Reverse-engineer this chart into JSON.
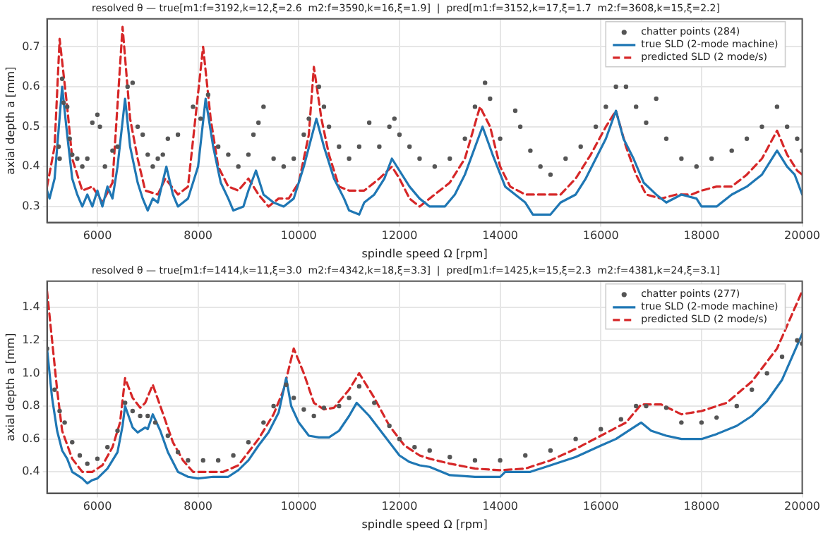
{
  "chart_data": [
    {
      "type": "line",
      "title": "resolved θ — true[m1:f=3192,k=12,ξ=2.6  m2:f=3590,k=16,ξ=1.9]  |  pred[m1:f=3152,k=17,ξ=1.7  m2:f=3608,k=15,ξ=2.2]",
      "xlabel": "spindle speed Ω [rpm]",
      "ylabel": "axial depth a [mm]",
      "xlim": [
        5000,
        20000
      ],
      "xticks": [
        6000,
        8000,
        10000,
        12000,
        14000,
        16000,
        18000,
        20000
      ],
      "ylim": [
        0.26,
        0.77
      ],
      "yticks": [
        0.3,
        0.4,
        0.5,
        0.6,
        0.7
      ],
      "grid": true,
      "legend": "top right",
      "series": [
        {
          "name": "chatter points (284)",
          "type": "scatter",
          "marker": "circle",
          "color": "#555555",
          "x": [
            5230,
            5250,
            5300,
            5330,
            5400,
            5450,
            5500,
            5600,
            5700,
            5800,
            5900,
            6000,
            6050,
            6150,
            6300,
            6400,
            6600,
            6700,
            6800,
            6900,
            7000,
            7100,
            7200,
            7300,
            7400,
            7600,
            7900,
            8050,
            8200,
            8400,
            8600,
            8800,
            9000,
            9100,
            9200,
            9300,
            9500,
            9700,
            9900,
            10100,
            10200,
            10400,
            10500,
            10600,
            10800,
            11000,
            11200,
            11400,
            11600,
            11800,
            11900,
            12000,
            12200,
            12400,
            12700,
            13000,
            13300,
            13500,
            13700,
            13800,
            14000,
            14300,
            14400,
            14600,
            14800,
            15000,
            15300,
            15600,
            15900,
            16100,
            16300,
            16500,
            16700,
            16900,
            17100,
            17300,
            17600,
            17900,
            18200,
            18600,
            18900,
            19200,
            19500,
            19700,
            19900,
            20000
          ],
          "values": [
            0.45,
            0.42,
            0.62,
            0.56,
            0.55,
            0.47,
            0.43,
            0.42,
            0.4,
            0.42,
            0.51,
            0.53,
            0.5,
            0.4,
            0.44,
            0.45,
            0.6,
            0.61,
            0.5,
            0.48,
            0.43,
            0.4,
            0.42,
            0.43,
            0.47,
            0.48,
            0.55,
            0.52,
            0.58,
            0.45,
            0.43,
            0.4,
            0.43,
            0.48,
            0.51,
            0.55,
            0.42,
            0.4,
            0.42,
            0.48,
            0.52,
            0.6,
            0.55,
            0.5,
            0.45,
            0.42,
            0.45,
            0.51,
            0.45,
            0.5,
            0.52,
            0.48,
            0.45,
            0.42,
            0.4,
            0.42,
            0.47,
            0.55,
            0.61,
            0.57,
            0.47,
            0.54,
            0.5,
            0.44,
            0.4,
            0.38,
            0.42,
            0.45,
            0.5,
            0.55,
            0.6,
            0.6,
            0.55,
            0.51,
            0.57,
            0.47,
            0.42,
            0.4,
            0.42,
            0.44,
            0.47,
            0.5,
            0.55,
            0.5,
            0.47,
            0.44
          ]
        },
        {
          "name": "true SLD (2-mode machine)",
          "type": "line",
          "line_style": "solid",
          "color": "#1f77b4",
          "x": [
            5000,
            5050,
            5150,
            5300,
            5400,
            5500,
            5600,
            5700,
            5800,
            5900,
            6000,
            6100,
            6200,
            6300,
            6400,
            6550,
            6650,
            6800,
            6900,
            7000,
            7100,
            7200,
            7370,
            7500,
            7600,
            7800,
            8000,
            8150,
            8300,
            8450,
            8600,
            8700,
            8900,
            9000,
            9150,
            9300,
            9500,
            9700,
            9900,
            10100,
            10350,
            10500,
            10700,
            10900,
            11000,
            11200,
            11300,
            11500,
            11700,
            11850,
            12000,
            12200,
            12400,
            12600,
            12900,
            13100,
            13300,
            13650,
            13850,
            14100,
            14300,
            14500,
            14650,
            15000,
            15200,
            15500,
            15700,
            15900,
            16100,
            16300,
            16450,
            16650,
            16850,
            17100,
            17300,
            17600,
            17900,
            18000,
            18300,
            18600,
            18900,
            19200,
            19500,
            19700,
            19850,
            20000
          ],
          "values": [
            0.34,
            0.32,
            0.37,
            0.6,
            0.48,
            0.37,
            0.33,
            0.3,
            0.33,
            0.3,
            0.34,
            0.3,
            0.35,
            0.32,
            0.4,
            0.57,
            0.45,
            0.36,
            0.32,
            0.29,
            0.32,
            0.31,
            0.4,
            0.33,
            0.3,
            0.32,
            0.4,
            0.57,
            0.45,
            0.36,
            0.32,
            0.29,
            0.3,
            0.34,
            0.39,
            0.33,
            0.31,
            0.3,
            0.32,
            0.4,
            0.52,
            0.45,
            0.37,
            0.32,
            0.29,
            0.28,
            0.31,
            0.33,
            0.37,
            0.42,
            0.39,
            0.35,
            0.32,
            0.3,
            0.3,
            0.33,
            0.38,
            0.5,
            0.43,
            0.35,
            0.33,
            0.31,
            0.28,
            0.28,
            0.31,
            0.33,
            0.37,
            0.42,
            0.47,
            0.54,
            0.47,
            0.42,
            0.36,
            0.33,
            0.31,
            0.33,
            0.32,
            0.3,
            0.3,
            0.33,
            0.35,
            0.38,
            0.44,
            0.4,
            0.38,
            0.33
          ]
        },
        {
          "name": "predicted SLD (2 mode/s)",
          "type": "line",
          "line_style": "dashed",
          "color": "#d62728",
          "x": [
            5000,
            5150,
            5250,
            5400,
            5500,
            5700,
            5900,
            6100,
            6300,
            6500,
            6650,
            6800,
            6950,
            7200,
            7350,
            7600,
            7800,
            8100,
            8250,
            8400,
            8600,
            8800,
            9000,
            9200,
            9400,
            9600,
            9800,
            10000,
            10200,
            10300,
            10450,
            10600,
            10800,
            11000,
            11300,
            11600,
            11850,
            12000,
            12200,
            12400,
            12700,
            13000,
            13300,
            13600,
            13800,
            14000,
            14200,
            14500,
            14800,
            15200,
            15500,
            15800,
            16100,
            16300,
            16500,
            16700,
            16900,
            17200,
            17500,
            17800,
            18000,
            18300,
            18600,
            18900,
            19200,
            19500,
            19700,
            19900,
            20000
          ],
          "values": [
            0.35,
            0.45,
            0.72,
            0.55,
            0.42,
            0.34,
            0.35,
            0.31,
            0.36,
            0.75,
            0.52,
            0.42,
            0.34,
            0.33,
            0.37,
            0.33,
            0.35,
            0.7,
            0.52,
            0.4,
            0.35,
            0.34,
            0.37,
            0.33,
            0.3,
            0.32,
            0.32,
            0.36,
            0.48,
            0.65,
            0.52,
            0.43,
            0.35,
            0.34,
            0.34,
            0.37,
            0.4,
            0.37,
            0.32,
            0.3,
            0.33,
            0.36,
            0.42,
            0.55,
            0.5,
            0.4,
            0.35,
            0.33,
            0.33,
            0.33,
            0.37,
            0.43,
            0.5,
            0.54,
            0.45,
            0.38,
            0.33,
            0.32,
            0.33,
            0.33,
            0.34,
            0.35,
            0.35,
            0.38,
            0.42,
            0.49,
            0.43,
            0.39,
            0.38
          ]
        }
      ]
    },
    {
      "type": "line",
      "title": "resolved θ — true[m1:f=1414,k=11,ξ=3.0  m2:f=4342,k=18,ξ=3.3]  |  pred[m1:f=1425,k=15,ξ=2.3  m2:f=4381,k=24,ξ=3.1]",
      "xlabel": "spindle speed Ω [rpm]",
      "ylabel": "axial depth a [mm]",
      "xlim": [
        5000,
        20000
      ],
      "xticks": [
        6000,
        8000,
        10000,
        12000,
        14000,
        16000,
        18000,
        20000
      ],
      "ylim": [
        0.27,
        1.56
      ],
      "yticks": [
        0.4,
        0.6,
        0.8,
        {
          "value": 1,
          "label": "1.0"
        },
        1.2,
        1.4
      ],
      "grid": true,
      "legend": "top right",
      "series": [
        {
          "name": "chatter points (277)",
          "type": "scatter",
          "marker": "circle",
          "color": "#555555",
          "x": [
            5000,
            5150,
            5250,
            5350,
            5500,
            5650,
            5800,
            6000,
            6200,
            6400,
            6550,
            6700,
            6850,
            7000,
            7150,
            7400,
            7600,
            7800,
            8100,
            8400,
            8700,
            9000,
            9300,
            9500,
            9750,
            9900,
            10100,
            10300,
            10500,
            10800,
            11000,
            11200,
            11500,
            11800,
            12000,
            12300,
            12600,
            13000,
            13500,
            14000,
            14500,
            15000,
            15500,
            16000,
            16400,
            16700,
            16900,
            17300,
            17600,
            18000,
            18300,
            18700,
            19000,
            19300,
            19600,
            19900,
            20000
          ],
          "values": [
            1.15,
            0.9,
            0.77,
            0.7,
            0.58,
            0.5,
            0.45,
            0.48,
            0.55,
            0.65,
            0.82,
            0.77,
            0.74,
            0.74,
            0.7,
            0.62,
            0.52,
            0.47,
            0.47,
            0.47,
            0.5,
            0.58,
            0.7,
            0.8,
            0.93,
            0.85,
            0.78,
            0.74,
            0.79,
            0.8,
            0.85,
            0.92,
            0.82,
            0.68,
            0.6,
            0.55,
            0.53,
            0.49,
            0.47,
            0.47,
            0.5,
            0.53,
            0.6,
            0.66,
            0.72,
            0.8,
            0.8,
            0.79,
            0.7,
            0.7,
            0.73,
            0.8,
            0.9,
            1.0,
            1.1,
            1.2,
            1.18
          ]
        },
        {
          "name": "true SLD (2-mode machine)",
          "type": "line",
          "line_style": "solid",
          "color": "#1f77b4",
          "x": [
            5000,
            5100,
            5200,
            5300,
            5400,
            5500,
            5600,
            5700,
            5800,
            5900,
            6000,
            6200,
            6400,
            6500,
            6550,
            6700,
            6800,
            6950,
            7000,
            7100,
            7250,
            7400,
            7600,
            7800,
            8000,
            8300,
            8600,
            8800,
            9000,
            9200,
            9400,
            9600,
            9750,
            9850,
            10000,
            10200,
            10400,
            10600,
            10800,
            11000,
            11150,
            11400,
            11700,
            12000,
            12200,
            12400,
            12600,
            13000,
            13500,
            14000,
            14100,
            14600,
            15000,
            15500,
            16000,
            16300,
            16600,
            16800,
            17000,
            17300,
            17600,
            18000,
            18300,
            18700,
            19000,
            19300,
            19600,
            20000
          ],
          "values": [
            1.15,
            0.85,
            0.65,
            0.53,
            0.48,
            0.4,
            0.38,
            0.36,
            0.33,
            0.35,
            0.36,
            0.42,
            0.52,
            0.68,
            0.8,
            0.67,
            0.64,
            0.67,
            0.66,
            0.75,
            0.65,
            0.52,
            0.4,
            0.37,
            0.36,
            0.37,
            0.37,
            0.41,
            0.47,
            0.56,
            0.64,
            0.76,
            0.97,
            0.8,
            0.7,
            0.62,
            0.61,
            0.61,
            0.65,
            0.74,
            0.82,
            0.74,
            0.62,
            0.5,
            0.46,
            0.44,
            0.43,
            0.38,
            0.37,
            0.37,
            0.4,
            0.4,
            0.44,
            0.49,
            0.56,
            0.6,
            0.66,
            0.7,
            0.65,
            0.62,
            0.6,
            0.6,
            0.63,
            0.68,
            0.74,
            0.83,
            0.96,
            1.24
          ]
        },
        {
          "name": "predicted SLD (2 mode/s)",
          "type": "line",
          "line_style": "dashed",
          "color": "#d62728",
          "x": [
            5000,
            5100,
            5200,
            5300,
            5500,
            5700,
            5900,
            6100,
            6300,
            6450,
            6550,
            6700,
            6850,
            6950,
            7100,
            7250,
            7500,
            7700,
            7900,
            8200,
            8500,
            8800,
            9200,
            9500,
            9700,
            9900,
            10100,
            10300,
            10500,
            10700,
            11000,
            11200,
            11500,
            11800,
            12100,
            12400,
            12600,
            13000,
            13500,
            14000,
            14500,
            15000,
            15500,
            16000,
            16500,
            16800,
            17200,
            17600,
            18000,
            18500,
            19000,
            19500,
            20000
          ],
          "values": [
            1.5,
            1.2,
            0.9,
            0.65,
            0.48,
            0.4,
            0.4,
            0.44,
            0.55,
            0.7,
            0.97,
            0.85,
            0.79,
            0.82,
            0.93,
            0.8,
            0.58,
            0.47,
            0.4,
            0.4,
            0.4,
            0.44,
            0.6,
            0.75,
            0.9,
            1.15,
            1.0,
            0.82,
            0.78,
            0.79,
            0.9,
            1.0,
            0.85,
            0.68,
            0.56,
            0.5,
            0.48,
            0.45,
            0.42,
            0.41,
            0.42,
            0.47,
            0.54,
            0.62,
            0.7,
            0.81,
            0.81,
            0.75,
            0.77,
            0.82,
            0.95,
            1.15,
            1.5
          ]
        }
      ]
    }
  ]
}
